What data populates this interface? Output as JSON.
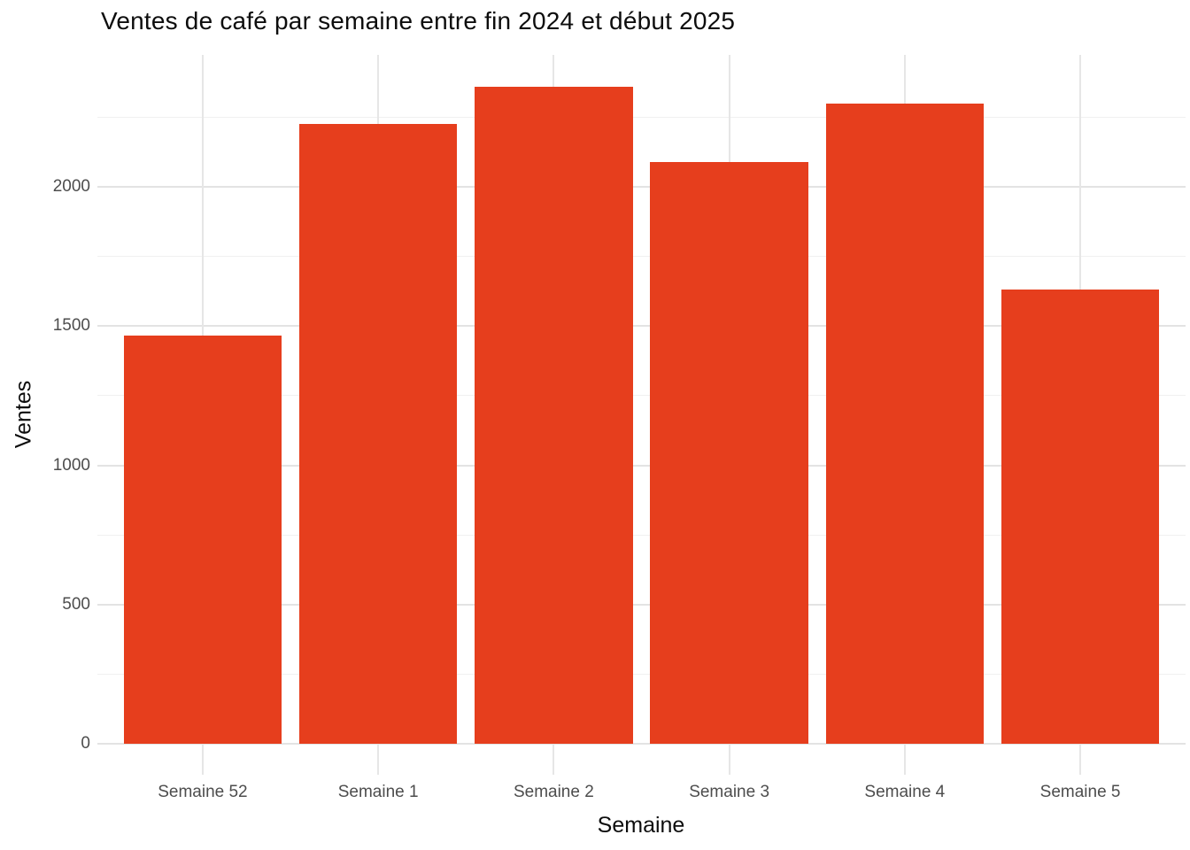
{
  "figure": {
    "title": "Ventes de café par semaine entre fin 2024 et début 2025"
  },
  "chart_data": {
    "type": "bar",
    "title": "Ventes de café par semaine entre fin 2024 et début 2025",
    "categories": [
      "Semaine 52",
      "Semaine 1",
      "Semaine 2",
      "Semaine 3",
      "Semaine 4",
      "Semaine 5"
    ],
    "values": [
      1465,
      2225,
      2360,
      2090,
      2300,
      1630
    ],
    "xlabel": "Semaine",
    "ylabel": "Ventes",
    "ylim": [
      0,
      2480
    ],
    "yticks": [
      0,
      500,
      1000,
      1500,
      2000
    ],
    "yminor": [
      250,
      750,
      1250,
      1750,
      2250
    ],
    "bar_color": "#e63e1d",
    "background_color": "#ffffff",
    "grid": true,
    "grid_color_major": "#e3e3e3",
    "grid_color_minor": "#f0f0f0",
    "tick_label_color": "#4d4d4d",
    "text_color": "#0d0d0d",
    "legend_position": "none"
  }
}
